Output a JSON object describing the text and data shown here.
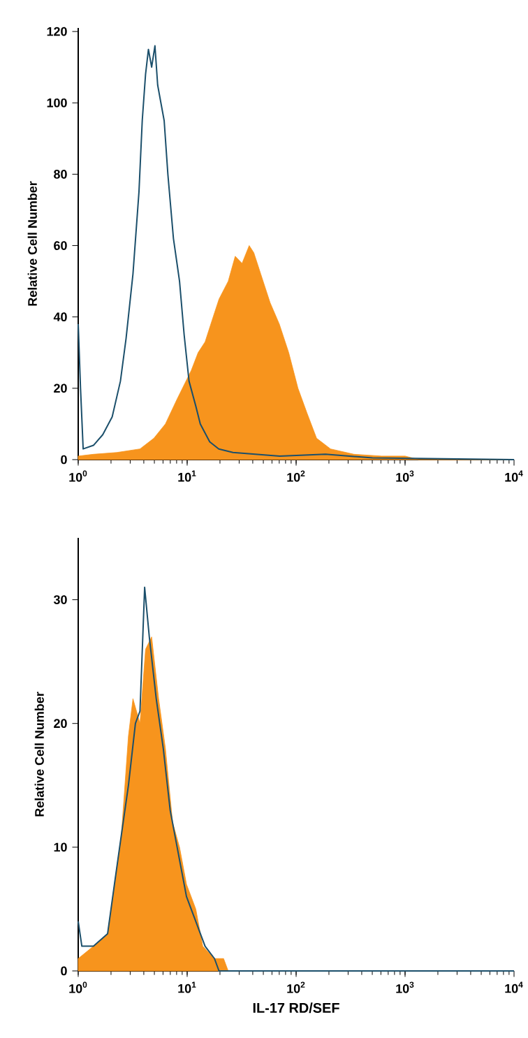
{
  "chart_data": [
    {
      "type": "area",
      "ylabel": "Relative Cell Number",
      "log": "x",
      "xlim": [
        1,
        10000
      ],
      "ylim": [
        0,
        121
      ],
      "xticks": [
        {
          "value": 1,
          "label": "10$^{0}$"
        },
        {
          "value": 10,
          "label": "10$^{1}$"
        },
        {
          "value": 100,
          "label": "10$^{2}$"
        },
        {
          "value": 1000,
          "label": "10$^{3}$"
        },
        {
          "value": 10000,
          "label": "10$^{4}$"
        }
      ],
      "yticks": [
        0,
        20,
        40,
        60,
        80,
        100,
        120
      ],
      "series": [
        {
          "color": "#f7941d",
          "x": [
            1,
            1.38,
            2.26,
            3.69,
            4.95,
            6.31,
            8.09,
            10.9,
            12.6,
            14.6,
            16.9,
            19.6,
            23.8,
            27.6,
            31.9,
            37.1,
            40.9,
            47.4,
            57.7,
            70.1,
            85.5,
            104,
            126,
            154,
            207,
            339,
            610,
            1000,
            1340,
            10000
          ],
          "values": [
            1,
            1.5,
            2,
            3,
            6,
            10,
            17,
            25,
            30,
            33,
            39,
            45,
            50,
            57,
            55,
            60,
            58,
            52,
            44,
            38,
            30,
            20,
            13,
            6,
            3,
            1.5,
            1,
            1,
            0,
            0
          ]
        },
        {
          "type": "line",
          "color": "#1b4f6b",
          "x": [
            1,
            1.05,
            1.11,
            1.38,
            1.68,
            2.05,
            2.44,
            2.75,
            3.18,
            3.61,
            3.87,
            4.15,
            4.41,
            4.72,
            5.06,
            5.36,
            5.74,
            6.15,
            6.65,
            7.48,
            8.51,
            9.38,
            10.4,
            12.0,
            13.2,
            16.1,
            19.5,
            26.3,
            70.8,
            186,
            501,
            10000
          ],
          "values": [
            38,
            20,
            3,
            4,
            7,
            12,
            22,
            34,
            52,
            75,
            95,
            108,
            115,
            110,
            116,
            105,
            100,
            95,
            80,
            62,
            50,
            35,
            22,
            15,
            10,
            5,
            3,
            2,
            1,
            1.5,
            0.5,
            0
          ]
        }
      ]
    },
    {
      "type": "area",
      "ylabel": "Relative Cell Number",
      "xlabel": "IL-17 RD/SEF",
      "log": "x",
      "xlim": [
        1,
        10000
      ],
      "ylim": [
        0,
        35
      ],
      "xticks": [
        {
          "value": 1,
          "label": "10$^{0}$"
        },
        {
          "value": 10,
          "label": "10$^{1}$"
        },
        {
          "value": 100,
          "label": "10$^{2}$"
        },
        {
          "value": 1000,
          "label": "10$^{3}$"
        },
        {
          "value": 10000,
          "label": "10$^{4}$"
        }
      ],
      "yticks": [
        0,
        10,
        20,
        30
      ],
      "series": [
        {
          "color": "#f7941d",
          "x": [
            1,
            1.38,
            1.86,
            2.15,
            2.49,
            2.89,
            3.18,
            3.69,
            4.15,
            4.72,
            5.47,
            6.31,
            7.35,
            8.51,
            9.86,
            12.0,
            13.9,
            17.8,
            21.6,
            23.8,
            10000
          ],
          "values": [
            1,
            2,
            3,
            7,
            11,
            19,
            22,
            20,
            26,
            27,
            22,
            18,
            12,
            10,
            7,
            5,
            2,
            1,
            1,
            0,
            0
          ]
        },
        {
          "type": "line",
          "color": "#1b4f6b",
          "x": [
            1,
            1.08,
            1.38,
            1.86,
            2.15,
            2.49,
            2.89,
            3.35,
            3.69,
            4.07,
            4.49,
            5.2,
            6.03,
            6.98,
            8.09,
            9.86,
            12.0,
            14.6,
            17.8,
            19.6,
            10000
          ],
          "values": [
            4,
            2,
            2,
            3,
            7,
            11,
            15,
            20,
            21,
            31,
            27,
            22,
            18,
            13,
            10,
            6,
            4,
            2,
            1,
            0,
            0
          ]
        }
      ]
    }
  ]
}
